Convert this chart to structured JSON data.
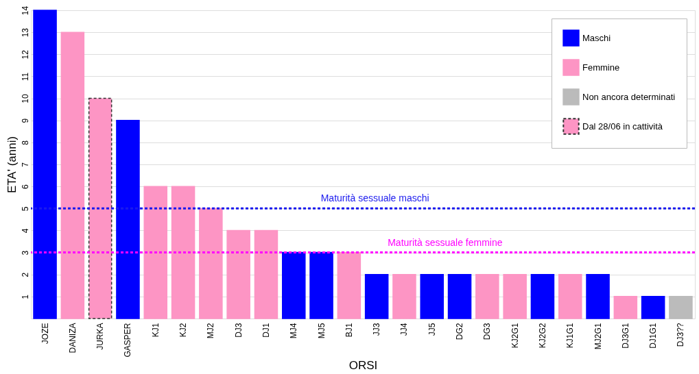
{
  "chart_data": {
    "type": "bar",
    "xlabel": "ORSI",
    "ylabel": "ETA' (anni)",
    "categories": [
      "JOZE",
      "DANIZA",
      "JURKA",
      "GASPER",
      "KJ1",
      "KJ2",
      "MJ2",
      "DJ3",
      "DJ1",
      "MJ4",
      "MJ5",
      "BJ1",
      "JJ3",
      "JJ4",
      "JJ5",
      "DG2",
      "DG3",
      "KJ2G1",
      "KJ2G2",
      "KJ1G1",
      "MJ2G1",
      "DJ3G1",
      "DJ1G1",
      "DJ3??"
    ],
    "series": [
      {
        "name": "Maschi",
        "color": "#0000ff",
        "values": [
          14,
          null,
          null,
          9,
          null,
          null,
          null,
          null,
          null,
          3,
          3,
          null,
          2,
          null,
          2,
          2,
          null,
          null,
          2,
          null,
          2,
          null,
          1,
          null
        ]
      },
      {
        "name": "Femmine",
        "color": "#fd95c4",
        "values": [
          null,
          13,
          null,
          null,
          6,
          6,
          5,
          4,
          4,
          null,
          null,
          3,
          null,
          2,
          null,
          null,
          2,
          2,
          null,
          2,
          null,
          1,
          null,
          null
        ]
      },
      {
        "name": "Non ancora determinati",
        "color": "#bbbbbb",
        "values": [
          null,
          null,
          null,
          null,
          null,
          null,
          null,
          null,
          null,
          null,
          null,
          null,
          null,
          null,
          null,
          null,
          null,
          null,
          null,
          null,
          null,
          null,
          null,
          1
        ]
      },
      {
        "name": "Dal 28/06 in cattività",
        "color": "#fd95c4",
        "line_style": "dashed",
        "values": [
          null,
          null,
          10,
          null,
          null,
          null,
          null,
          null,
          null,
          null,
          null,
          null,
          null,
          null,
          null,
          null,
          null,
          null,
          null,
          null,
          null,
          null,
          null,
          null
        ]
      }
    ],
    "ylim": [
      0,
      14
    ],
    "yticks": [
      1,
      2,
      3,
      4,
      5,
      6,
      7,
      8,
      9,
      10,
      11,
      12,
      13,
      14
    ],
    "grid": "y",
    "legend": "top right",
    "ref_lines": [
      {
        "axis": "y",
        "value": 5,
        "label": "Maturità sessuale maschi",
        "color": "#1a1aee",
        "line_style": "dashed"
      },
      {
        "axis": "y",
        "value": 3,
        "label": "Maturità sessuale femmine",
        "color": "#ff00ff",
        "line_style": "dashed"
      }
    ]
  }
}
